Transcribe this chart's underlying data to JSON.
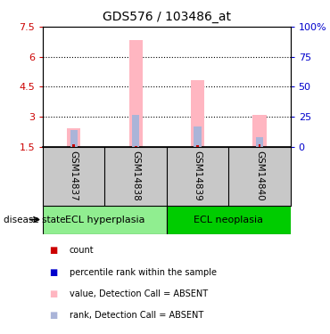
{
  "title": "GDS576 / 103486_at",
  "samples": [
    "GSM14837",
    "GSM14838",
    "GSM14839",
    "GSM14840"
  ],
  "ylim_left": [
    1.5,
    7.5
  ],
  "yticks_left": [
    1.5,
    3.0,
    4.5,
    6.0,
    7.5
  ],
  "ytick_labels_left": [
    "1.5",
    "3",
    "4.5",
    "6",
    "7.5"
  ],
  "ylim_right": [
    0,
    100
  ],
  "yticks_right": [
    0,
    25,
    50,
    75,
    100
  ],
  "ytick_labels_right": [
    "0",
    "25",
    "50",
    "75",
    "100%"
  ],
  "bar_values": [
    2.45,
    6.85,
    4.85,
    3.1
  ],
  "bar_base": 1.5,
  "rank_values": [
    2.35,
    3.1,
    2.5,
    2.0
  ],
  "rank_base": 1.5,
  "count_values": [
    1.63,
    1.56,
    1.58,
    1.63
  ],
  "count_base": 1.5,
  "groups": [
    {
      "label": "ECL hyperplasia",
      "samples": [
        0,
        1
      ],
      "color": "#90ee90"
    },
    {
      "label": "ECL neoplasia",
      "samples": [
        2,
        3
      ],
      "color": "#00cc00"
    }
  ],
  "pink_color": "#ffb6c1",
  "light_blue_color": "#aab4d8",
  "red_color": "#cc0000",
  "blue_color": "#0000cc",
  "axis_label_left_color": "#cc0000",
  "axis_label_right_color": "#0000cc",
  "sample_bg_color": "#c8c8c8",
  "legend_items": [
    [
      "#cc0000",
      "count"
    ],
    [
      "#0000cc",
      "percentile rank within the sample"
    ],
    [
      "#ffb6c1",
      "value, Detection Call = ABSENT"
    ],
    [
      "#aab4d8",
      "rank, Detection Call = ABSENT"
    ]
  ],
  "grid_yticks": [
    3.0,
    4.5,
    6.0
  ]
}
